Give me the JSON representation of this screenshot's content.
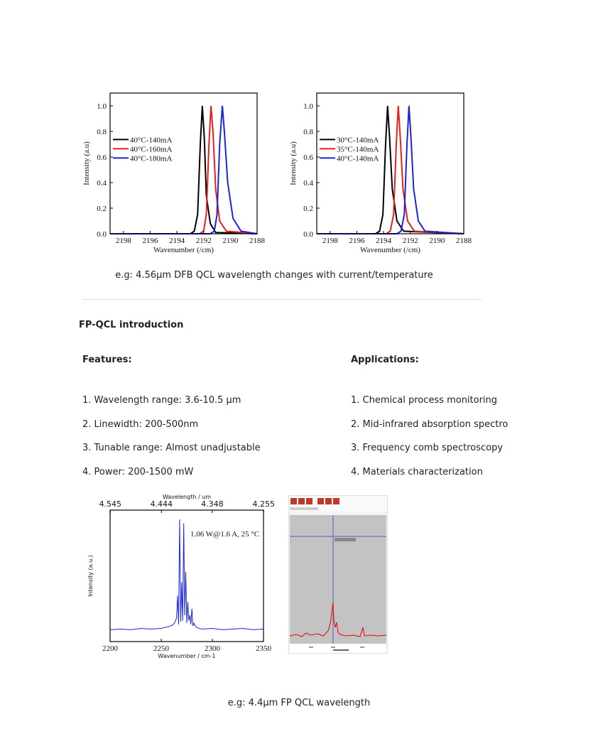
{
  "chart_data": [
    {
      "type": "line",
      "xlabel": "Wavenumber (/cm)",
      "ylabel": "Intensity (a.u)",
      "xlim": [
        2199,
        2188
      ],
      "xticks": [
        2198,
        2196,
        2194,
        2192,
        2190,
        2188
      ],
      "ylim": [
        0,
        1.1
      ],
      "yticks": [
        {
          "value": 0,
          "label": "0.0"
        },
        {
          "value": 0.2,
          "label": "0.2"
        },
        {
          "value": 0.4,
          "label": "0.4"
        },
        {
          "value": 0.6,
          "label": "0.6"
        },
        {
          "value": 0.8,
          "label": "0.8"
        },
        {
          "value": 1,
          "label": "1.0"
        }
      ],
      "legend": "center left",
      "series": [
        {
          "name": "40°C-140mA",
          "color": "#000000",
          "x": [
            2199,
            2193,
            2192.7,
            2192.45,
            2192.25,
            2192.1,
            2191.95,
            2191.8,
            2191.5,
            2191.1,
            2188
          ],
          "values": [
            0,
            0,
            0.02,
            0.15,
            0.7,
            1.0,
            0.75,
            0.3,
            0.08,
            0.01,
            0
          ]
        },
        {
          "name": "40°C-160mA",
          "color": "#e8201c",
          "x": [
            2199,
            2192.3,
            2192.0,
            2191.8,
            2191.6,
            2191.45,
            2191.3,
            2191.1,
            2190.8,
            2190.3,
            2188
          ],
          "values": [
            0,
            0,
            0.02,
            0.15,
            0.7,
            1.0,
            0.8,
            0.35,
            0.1,
            0.02,
            0
          ]
        },
        {
          "name": "40°C-180mA",
          "color": "#1c24d8",
          "x": [
            2199,
            2191.5,
            2191.2,
            2191.0,
            2190.8,
            2190.6,
            2190.45,
            2190.2,
            2189.8,
            2189.2,
            2188
          ],
          "values": [
            0,
            0,
            0.02,
            0.15,
            0.7,
            1.0,
            0.8,
            0.4,
            0.12,
            0.02,
            0
          ]
        }
      ]
    },
    {
      "type": "line",
      "xlabel": "Wavenumber (/cm)",
      "ylabel": "Intensity (a.u)",
      "xlim": [
        2199,
        2188
      ],
      "xticks": [
        2198,
        2196,
        2194,
        2192,
        2190,
        2188
      ],
      "ylim": [
        0,
        1.1
      ],
      "yticks": [
        {
          "value": 0,
          "label": "0.0"
        },
        {
          "value": 0.2,
          "label": "0.2"
        },
        {
          "value": 0.4,
          "label": "0.4"
        },
        {
          "value": 0.6,
          "label": "0.6"
        },
        {
          "value": 0.8,
          "label": "0.8"
        },
        {
          "value": 1,
          "label": "1.0"
        }
      ],
      "legend": "center left",
      "series": [
        {
          "name": "30°C-140mA",
          "color": "#000000",
          "x": [
            2199,
            2194.6,
            2194.3,
            2194.05,
            2193.85,
            2193.7,
            2193.55,
            2193.35,
            2193.0,
            2192.5,
            2188
          ],
          "values": [
            0,
            0,
            0.02,
            0.15,
            0.7,
            1.0,
            0.75,
            0.35,
            0.1,
            0.02,
            0
          ]
        },
        {
          "name": "35°C-140mA",
          "color": "#e8201c",
          "x": [
            2199,
            2193.8,
            2193.5,
            2193.25,
            2193.05,
            2192.9,
            2192.75,
            2192.55,
            2192.2,
            2191.7,
            2188
          ],
          "values": [
            0,
            0,
            0.02,
            0.15,
            0.7,
            1.0,
            0.75,
            0.35,
            0.1,
            0.02,
            0
          ]
        },
        {
          "name": "40°C-140mA",
          "color": "#1c24d8",
          "x": [
            2199,
            2193.0,
            2192.7,
            2192.45,
            2192.25,
            2192.1,
            2191.95,
            2191.75,
            2191.4,
            2190.9,
            2188
          ],
          "values": [
            0,
            0,
            0.02,
            0.15,
            0.7,
            1.0,
            0.75,
            0.35,
            0.1,
            0.02,
            0
          ]
        }
      ]
    },
    {
      "type": "line",
      "xlabel": "Wavenumber / cm-1",
      "x2label": "Wavelength / um",
      "ylabel": "Intensity (a.u.)",
      "annotation": "1.06 W@1.6 A, 25 °C",
      "xlim": [
        2200,
        2350
      ],
      "xticks": [
        2200,
        2250,
        2300,
        2350
      ],
      "x2ticks": [
        4.545,
        4.444,
        4.348,
        4.255
      ],
      "ylim": [
        0,
        1
      ],
      "series": [
        {
          "color": "#1c24d8",
          "x": [
            2200,
            2210,
            2220,
            2230,
            2240,
            2250,
            2255,
            2260,
            2263,
            2265,
            2266,
            2267,
            2268,
            2269,
            2270,
            2271,
            2272,
            2273,
            2274,
            2275,
            2276,
            2277,
            2278,
            2279,
            2280,
            2281,
            2282,
            2284,
            2287,
            2290,
            2300,
            2310,
            2320,
            2330,
            2340,
            2350
          ],
          "values": [
            0.09,
            0.095,
            0.09,
            0.1,
            0.095,
            0.1,
            0.11,
            0.12,
            0.14,
            0.18,
            0.35,
            0.13,
            0.93,
            0.15,
            0.45,
            0.16,
            0.9,
            0.2,
            0.53,
            0.14,
            0.3,
            0.16,
            0.2,
            0.13,
            0.25,
            0.12,
            0.14,
            0.11,
            0.1,
            0.095,
            0.1,
            0.09,
            0.095,
            0.1,
            0.09,
            0.095
          ]
        }
      ]
    }
  ],
  "caption1": "e.g: 4.56μm DFB QCL wavelength changes with current/temperature",
  "section_title": "FP-QCL introduction",
  "features": {
    "heading": "Features:",
    "items": [
      "1. Wavelength range: 3.6-10.5 μm",
      "2. Linewidth: 200-500nm",
      "3. Tunable range: Almost unadjustable",
      "4. Power: 200-1500 mW"
    ]
  },
  "applications": {
    "heading": "Applications:",
    "items": [
      "1. Chemical process monitoring",
      "2. Mid-infrared absorption spectro",
      "3. Frequency comb spectroscopy",
      "4. Materials characterization"
    ]
  },
  "caption2": "e.g: 4.4μm FP QCL wavelength"
}
